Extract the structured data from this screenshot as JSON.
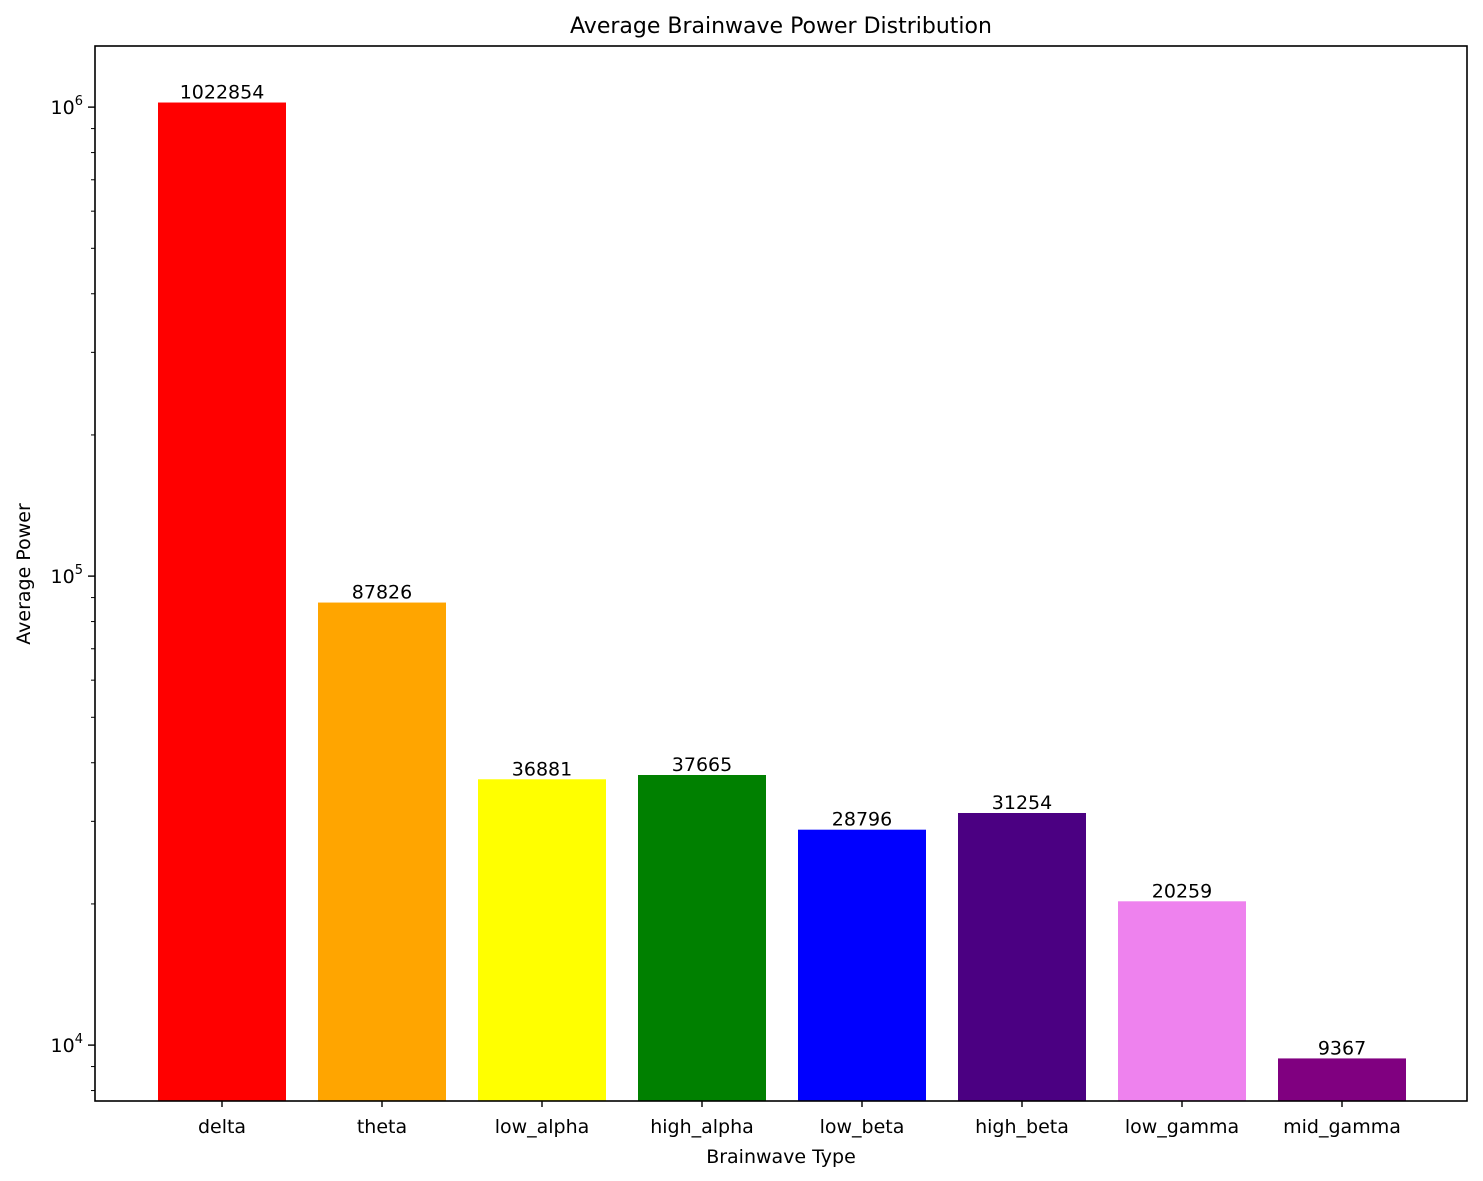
{
  "chart_data": {
    "type": "bar",
    "title": "Average Brainwave Power Distribution",
    "xlabel": "Brainwave Type",
    "ylabel": "Average Power",
    "yscale": "log",
    "ylim": [
      7600,
      1350000
    ],
    "ytick_values": [
      10000,
      100000,
      1000000
    ],
    "ytick_labels": [
      {
        "base": "10",
        "exp": "4"
      },
      {
        "base": "10",
        "exp": "5"
      },
      {
        "base": "10",
        "exp": "6"
      }
    ],
    "grid": false,
    "legend": "none",
    "categories": [
      "delta",
      "theta",
      "low_alpha",
      "high_alpha",
      "low_beta",
      "high_beta",
      "low_gamma",
      "mid_gamma"
    ],
    "values": [
      1022854,
      87826,
      36881,
      37665,
      28796,
      31254,
      20259,
      9367
    ],
    "data_labels": [
      "1022854",
      "87826",
      "36881",
      "37665",
      "28796",
      "31254",
      "20259",
      "9367"
    ],
    "colors": [
      "#ff0000",
      "#ffa500",
      "#ffff00",
      "#008000",
      "#0000ff",
      "#4b0082",
      "#ee82ee",
      "#800080"
    ]
  }
}
